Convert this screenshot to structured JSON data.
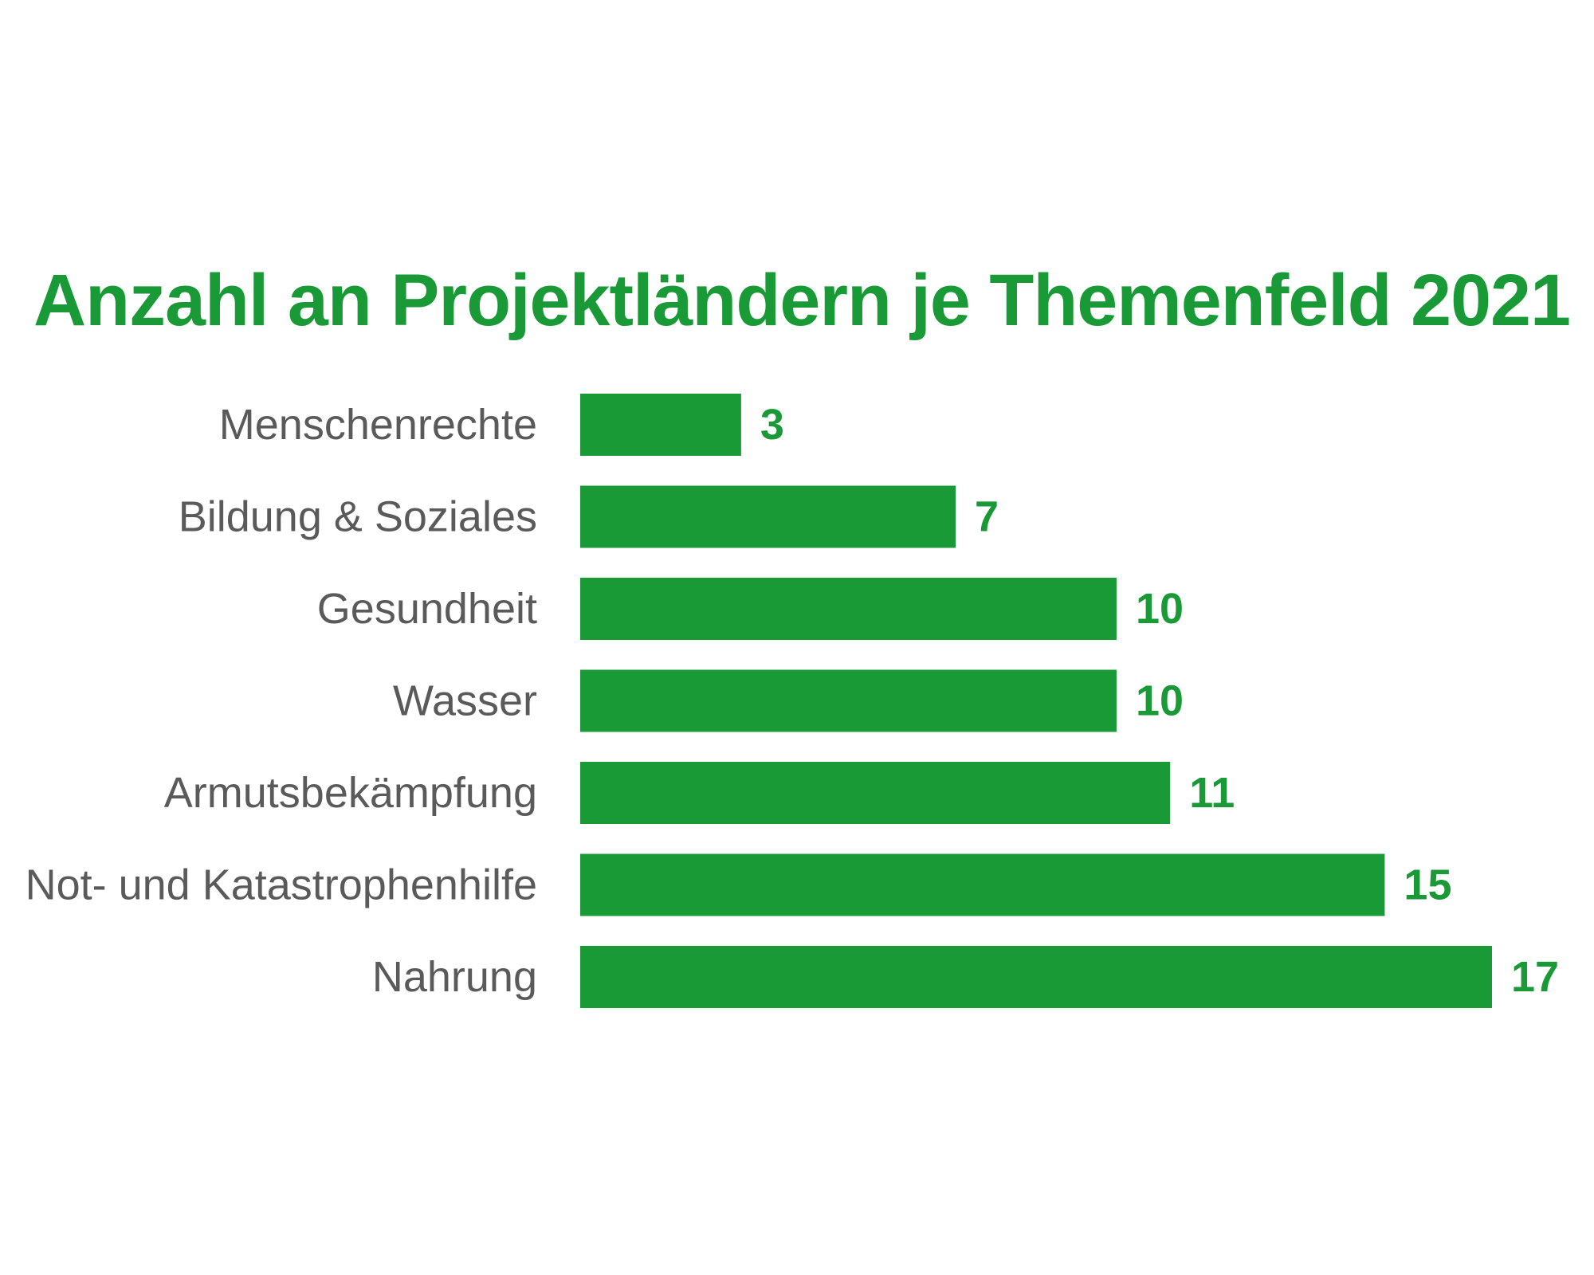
{
  "chart_data": {
    "type": "bar",
    "orientation": "horizontal",
    "title": "Anzahl an Projektländern je Themenfeld 2021",
    "categories": [
      "Menschenrechte",
      "Bildung & Soziales",
      "Gesundheit",
      "Wasser",
      "Armutsbekämpfung",
      "Not- und Katastrophenhilfe",
      "Nahrung"
    ],
    "values": [
      3,
      7,
      10,
      10,
      11,
      15,
      17
    ],
    "value_labels": [
      "3",
      "7",
      "10",
      "10",
      "11",
      "15",
      "17"
    ],
    "xlim": [
      0,
      17
    ],
    "grid": false,
    "legend": "none",
    "colors": {
      "bar": "#1a9a36",
      "title": "#1a9a36",
      "value_label": "#1a9a36",
      "category_label": "#5a5a5a",
      "background": "#ffffff"
    }
  }
}
